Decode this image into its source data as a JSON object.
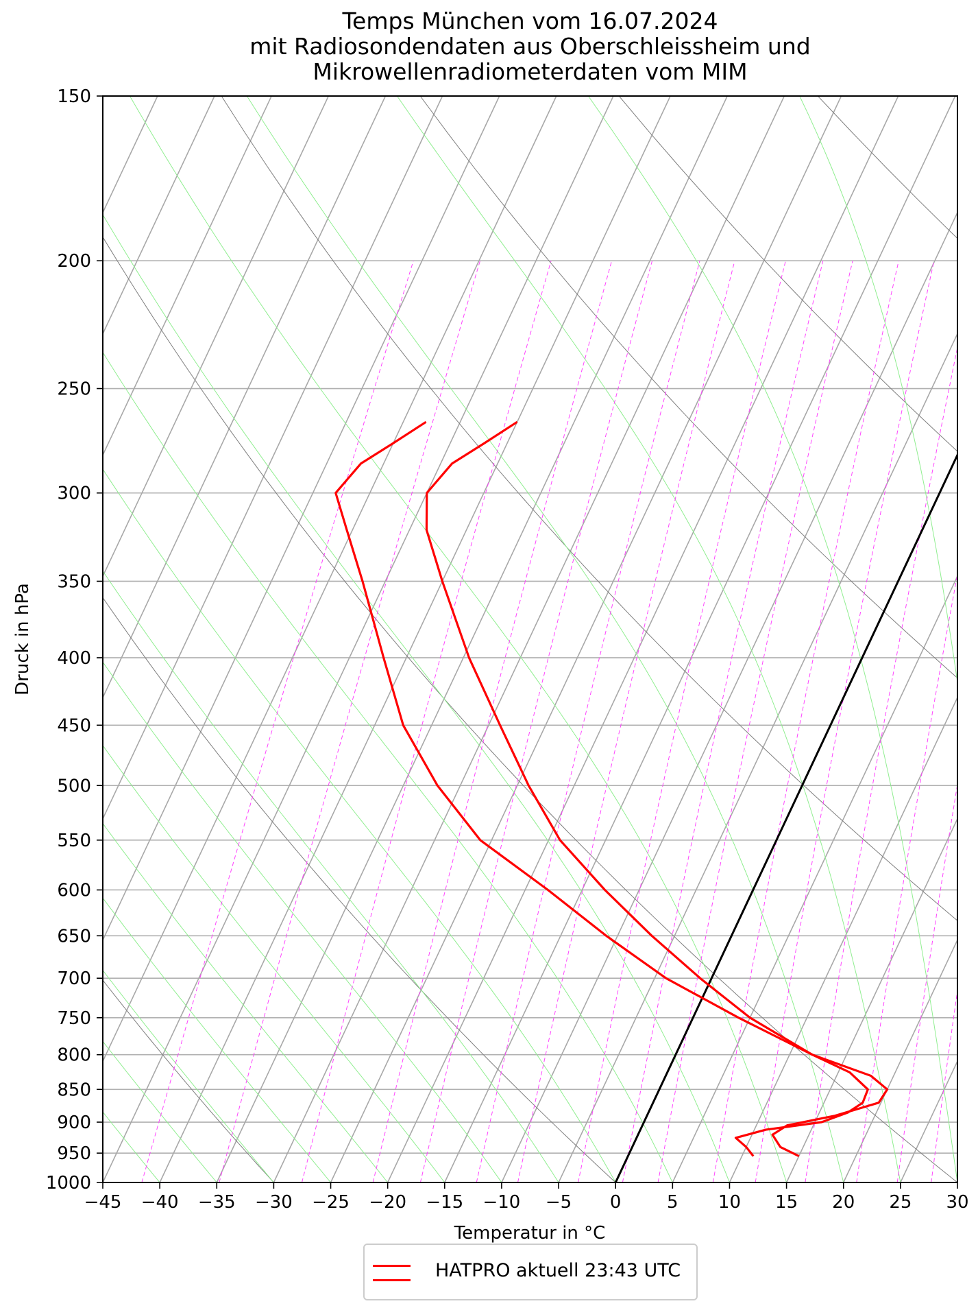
{
  "title": {
    "line1": "Temps München vom 16.07.2024",
    "line2": "mit Radiosondendaten aus Oberschleissheim und",
    "line3": "Mikrowellenradiometerdaten vom MIM"
  },
  "legend": {
    "label": "HATPRO aktuell 23:43 UTC",
    "color": "#ff0000"
  },
  "chart_data": {
    "type": "line",
    "subtype": "skew-T log-p diagram",
    "title": "Temps München vom 16.07.2024 mit Radiosondendaten aus Oberschleissheim und Mikrowellenradiometerdaten vom MIM",
    "xlabel": "Temperatur in °C",
    "ylabel": "Druck in hPa",
    "xlim": [
      -45,
      30
    ],
    "ylim": [
      1000,
      150
    ],
    "y_scale": "log",
    "x_ticks": [
      "−45",
      "−40",
      "−35",
      "−30",
      "−25",
      "−20",
      "−15",
      "−10",
      "−5",
      "0",
      "5",
      "10",
      "15",
      "20",
      "25",
      "30"
    ],
    "y_ticks": [
      "150",
      "200",
      "250",
      "300",
      "350",
      "400",
      "450",
      "500",
      "550",
      "600",
      "650",
      "700",
      "750",
      "800",
      "850",
      "900",
      "950",
      "1000"
    ],
    "grid": true,
    "legend_position": "below chart, centered",
    "colors": {
      "profiles": "#ff0000",
      "isotherms": "#a8a8a8",
      "dry_adiabats": "#7f7f7f",
      "moist_adiabats": "#90ee90",
      "mixing_ratio": "#ff44ff",
      "zero_isotherm": "#000000"
    },
    "series": [
      {
        "name": "HATPRO aktuell 23:43 UTC",
        "role": "temperature",
        "pressure": [
          955,
          940,
          920,
          905,
          890,
          870,
          850,
          830,
          800,
          750,
          700,
          650,
          600,
          550,
          500,
          450,
          400,
          350,
          320,
          300,
          285,
          275,
          265
        ],
        "temperature": [
          15.0,
          13.0,
          11.8,
          12.7,
          16.5,
          19.8,
          20.0,
          18.0,
          12.0,
          5.0,
          -1.0,
          -7.0,
          -13.0,
          -19.0,
          -24.0,
          -29.0,
          -34.5,
          -40.0,
          -43.5,
          -45.0,
          -44.0,
          -42.0,
          -40.0
        ]
      },
      {
        "name": "",
        "role": "dewpoint",
        "pressure": [
          955,
          940,
          925,
          912,
          900,
          885,
          870,
          850,
          825,
          800,
          750,
          700,
          650,
          600,
          550,
          500,
          450,
          400,
          350,
          320,
          300,
          285,
          275,
          265
        ],
        "temperature": [
          11.0,
          10.0,
          8.7,
          11.0,
          15.6,
          17.5,
          18.4,
          18.3,
          16.0,
          12.0,
          4.0,
          -4.0,
          -11.0,
          -18.0,
          -26.0,
          -32.0,
          -37.5,
          -42.0,
          -47.0,
          -50.5,
          -53.0,
          -52.0,
          -50.0,
          -48.0
        ]
      }
    ]
  }
}
